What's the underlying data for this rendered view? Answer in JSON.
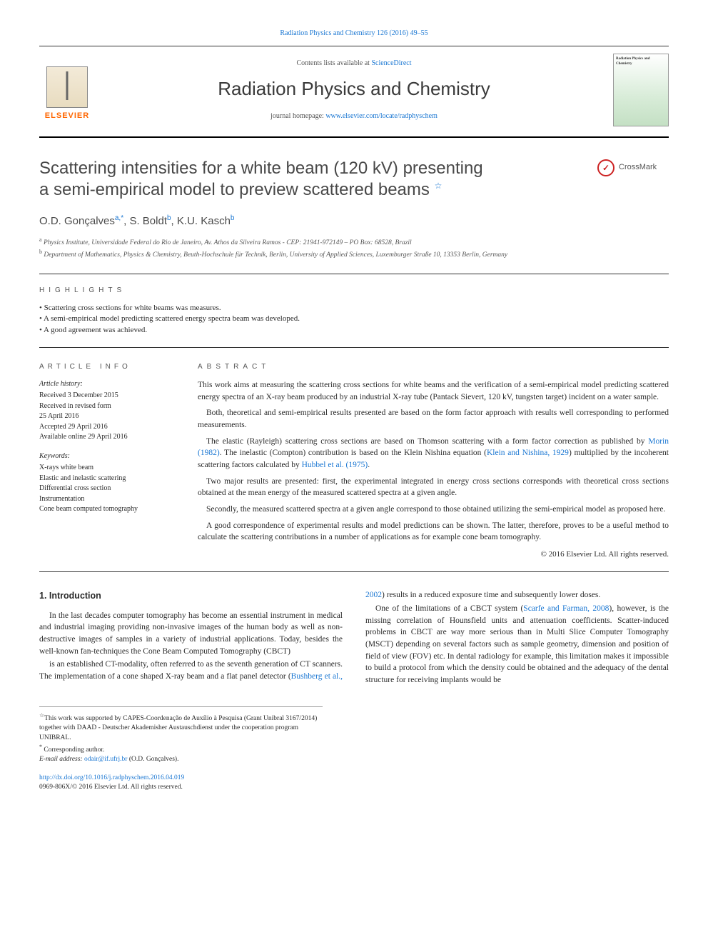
{
  "top_citation": "Radiation Physics and Chemistry 126 (2016) 49–55",
  "header": {
    "contents_prefix": "Contents lists available at ",
    "contents_link": "ScienceDirect",
    "journal_name": "Radiation Physics and Chemistry",
    "homepage_prefix": "journal homepage: ",
    "homepage_url": "www.elsevier.com/locate/radphyschem",
    "elsevier": "ELSEVIER",
    "cover_title": "Radiation Physics and Chemistry"
  },
  "title_line1": "Scattering intensities for a white beam (120 kV) presenting",
  "title_line2": "a semi-empirical model to preview scattered beams",
  "title_fn_marker": "☆",
  "crossmark_label": "CrossMark",
  "authors_html": {
    "a1_name": "O.D. Gonçalves",
    "a1_sup": "a,*",
    "a2_name": "S. Boldt",
    "a2_sup": "b",
    "a3_name": "K.U. Kasch",
    "a3_sup": "b"
  },
  "affiliations": {
    "a": "Physics Institute, Universidade Federal do Rio de Janeiro, Av. Athos da Silveira Ramos - CEP: 21941-972149 – PO Box: 68528, Brazil",
    "b": "Department of Mathematics, Physics & Chemistry, Beuth-Hochschule für Technik, Berlin, University of Applied Sciences, Luxemburger Straße 10, 13353 Berlin, Germany"
  },
  "highlights_label": "HIGHLIGHTS",
  "highlights": [
    "Scattering cross sections for white beams was measures.",
    "A semi-empirical model predicting scattered energy spectra beam was developed.",
    "A good agreement was achieved."
  ],
  "article_info_label": "article info",
  "abstract_label": "ABSTRACT",
  "article_info": {
    "history_head": "Article history:",
    "received": "Received 3 December 2015",
    "revised1": "Received in revised form",
    "revised2": "25 April 2016",
    "accepted": "Accepted 29 April 2016",
    "online": "Available online 29 April 2016",
    "keywords_head": "Keywords:",
    "keywords": [
      "X-rays white beam",
      "Elastic and inelastic scattering",
      "Differential cross section",
      "Instrumentation",
      "Cone beam computed tomography"
    ]
  },
  "abstract": {
    "p1": "This work aims at measuring the scattering cross sections for white beams and the verification of a semi-empirical model predicting scattered energy spectra of an X-ray beam produced by an industrial X-ray tube (Pantack Sievert, 120 kV, tungsten target) incident on a water sample.",
    "p2": "Both, theoretical and semi-empirical results presented are based on the form factor approach with results well corresponding to performed measurements.",
    "p3_a": "The elastic (Rayleigh) scattering cross sections are based on Thomson scattering with a form factor correction as published by ",
    "p3_link1": "Morin (1982)",
    "p3_b": ". The inelastic (Compton) contribution is based on the Klein Nishina equation (",
    "p3_link2": "Klein and Nishina, 1929",
    "p3_c": ") multiplied by the incoherent scattering factors calculated by ",
    "p3_link3": "Hubbel et al. (1975)",
    "p3_d": ".",
    "p4": "Two major results are presented: first, the experimental integrated in energy cross sections corresponds with theoretical cross sections obtained at the mean energy of the measured scattered spectra at a given angle.",
    "p5": "Secondly, the measured scattered spectra at a given angle correspond to those obtained utilizing the semi-empirical model as proposed here.",
    "p6": "A good correspondence of experimental results and model predictions can be shown. The latter, therefore, proves to be a useful method to calculate the scattering contributions in a number of applications as for example cone beam tomography."
  },
  "abs_copyright": "© 2016 Elsevier Ltd. All rights reserved.",
  "intro_heading": "1. Introduction",
  "intro": {
    "p1": "In the last decades computer tomography has become an essential instrument in medical and industrial imaging providing non-invasive images of the human body as well as non-destructive images of samples in a variety of industrial applications. Today, besides the well-known fan-techniques the Cone Beam Computed Tomography (CBCT)",
    "p2_a": "is an established CT-modality, often referred to as the seventh generation of CT scanners. The implementation of a cone shaped X-ray beam and a flat panel detector (",
    "p2_link": "Bushberg et al., 2002",
    "p2_b": ") results in a reduced exposure time and subsequently lower doses.",
    "p3_a": "One of the limitations of a CBCT system (",
    "p3_link": "Scarfe and Farman, 2008",
    "p3_b": "), however, is the missing correlation of Hounsfield units and attenuation coefficients. Scatter-induced problems in CBCT are way more serious than in Multi Slice Computer Tomography (MSCT) depending on several factors such as sample geometry, dimension and position of field of view (FOV) etc. In dental radiology for example, this limitation makes it impossible to build a protocol from which the density could be obtained and the adequacy of the dental structure for receiving implants would be"
  },
  "footnotes": {
    "fn_star": "This work was supported by CAPES-Coordenação de Auxílio à Pesquisa (Grant Unibral 3167/2014) together with DAAD - Deutscher Akademisher Austauschdienst under the cooperation program UNIBRAL.",
    "corr": "Corresponding author.",
    "email_label": "E-mail address: ",
    "email": "odair@if.ufrj.br",
    "email_who": " (O.D. Gonçalves)."
  },
  "doi": {
    "url": "http://dx.doi.org/10.1016/j.radphyschem.2016.04.019",
    "issn_line": "0969-806X/© 2016 Elsevier Ltd. All rights reserved."
  },
  "colors": {
    "link": "#1976d2",
    "accent_orange": "#ff6600",
    "text": "#2a2a2a",
    "muted": "#555555"
  }
}
